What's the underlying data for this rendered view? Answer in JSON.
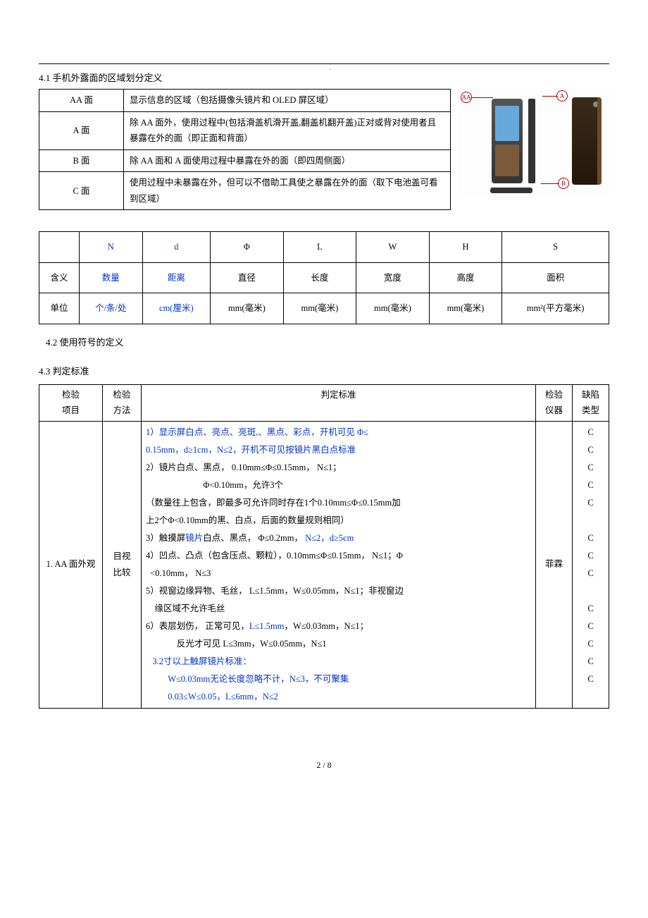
{
  "colors": {
    "text": "#000000",
    "link": "#0033cc",
    "border": "#000000",
    "badge": "#a00000"
  },
  "section_41": "4.1  手机外露面的区域划分定义",
  "surfaces_table": {
    "rows": [
      {
        "label": "AA 面",
        "desc": "显示信息的区域（包括摄像头镜片和 OLED 屏区域）"
      },
      {
        "label": "A 面",
        "desc": "除 AA 面外，使用过程中(包括滑盖机滑开盖,翻盖机翻开盖)正对或背对使用者且暴露在外的面（即正面和背面）"
      },
      {
        "label": "B 面",
        "desc": "除 AA 面和 A 面使用过程中暴露在外的面（即四周侧面）"
      },
      {
        "label": "C 面",
        "desc": "使用过程中未暴露在外，但可以不借助工具使之暴露在外的面（取下电池盖可看到区域）"
      }
    ]
  },
  "phone_diagram": {
    "badges": [
      "AA",
      "A",
      "B"
    ]
  },
  "symbols_table": {
    "headers": [
      "",
      "N",
      "d",
      "Φ",
      "L",
      "W",
      "H",
      "S"
    ],
    "row_meaning_label": "含义",
    "row_meaning": [
      "数量",
      "距离",
      "直径",
      "长度",
      "宽度",
      "高度",
      "面积"
    ],
    "row_unit_label": "单位",
    "row_unit": [
      "个/条/处",
      "cm(厘米)",
      "mm(毫米)",
      "mm(毫米)",
      "mm(毫米)",
      "mm(毫米)",
      "mm²(平方毫米)"
    ],
    "blue_cols": [
      1,
      2
    ]
  },
  "section_42": "4.2 使用符号的定义",
  "section_43": "4.3  判定标准",
  "criteria_table": {
    "headers": [
      "检验\n项目",
      "检验\n方法",
      "判定标准",
      "检验\n仪器",
      "缺陷\n类型"
    ],
    "col_widths": [
      "90px",
      "55px",
      "auto",
      "52px",
      "52px"
    ],
    "item": "1. AA 面外观",
    "method": "目视\n比较",
    "instrument": "菲霖",
    "lines": [
      {
        "segs": [
          {
            "t": "1）显示屏白点、亮点、亮斑,、黑点、彩点，开机可见      ",
            "c": "blue"
          },
          {
            "t": "Φ≤",
            "c": "blue"
          }
        ]
      },
      {
        "segs": [
          {
            "t": "0.15mm，d≥1cm，N≤2，开机不可见按镜片黑白点标准",
            "c": "blue"
          }
        ]
      },
      {
        "segs": [
          {
            "t": "2）镜片白点、黑点，  0.10mm≤Φ≤0.15mm，  N≤1；",
            "c": ""
          }
        ]
      },
      {
        "segs": [
          {
            "t": "                          Φ<0.10mm，允许3个",
            "c": ""
          }
        ]
      },
      {
        "segs": [
          {
            "t": "（数量往上包含，即最多可允许同时存在1个0.10mm≤Φ≤0.15mm加",
            "c": ""
          }
        ]
      },
      {
        "segs": [
          {
            "t": "上2个Φ<0.10mm的黑、白点，后面的数量规则相同）",
            "c": ""
          }
        ]
      },
      {
        "segs": [
          {
            "t": "3）触摸屏",
            "c": ""
          },
          {
            "t": "镜片",
            "c": "blue"
          },
          {
            "t": "白点、黑点，    Φ≤0.2mm，",
            "c": ""
          },
          {
            "t": " N≤2，d≥5cm",
            "c": "blue"
          }
        ]
      },
      {
        "segs": [
          {
            "t": "4）凹点、凸点（包含压点、颗粒），0.10mm≤Φ≤0.15mm，  N≤1；Φ",
            "c": ""
          }
        ]
      },
      {
        "segs": [
          {
            "t": "  <0.10mm，  N≤3",
            "c": ""
          }
        ]
      },
      {
        "segs": [
          {
            "t": "5）视窗边缘异物、毛丝，  L≤1.5mm，W≤0.05mm，N≤1；非视窗边",
            "c": ""
          }
        ]
      },
      {
        "segs": [
          {
            "t": "    缘区域不允许毛丝",
            "c": ""
          }
        ]
      },
      {
        "segs": [
          {
            "t": "6）表层划伤，  正常可见，",
            "c": ""
          },
          {
            "t": "L≤1.5mm",
            "c": "blue"
          },
          {
            "t": "，W≤0.03mm，N≤1；",
            "c": ""
          }
        ]
      },
      {
        "segs": [
          {
            "t": "              反光才可见  L≤3mm，W≤0.05mm，N≤1",
            "c": ""
          }
        ]
      },
      {
        "segs": [
          {
            "t": "   3.2寸以上触屏镜片标准：",
            "c": "blue"
          }
        ]
      },
      {
        "segs": [
          {
            "t": "          W≤0.03mm无论长度忽略不计，N≤3，不可聚集",
            "c": "blue"
          }
        ]
      },
      {
        "segs": [
          {
            "t": "          0.03≤W≤0.05，L≤6mm，N≤2",
            "c": "blue"
          }
        ]
      }
    ],
    "defects": [
      "C",
      "C",
      "C",
      "C",
      "C",
      "",
      "C",
      "C",
      "C",
      "",
      "C",
      "C",
      "C",
      "C",
      "C"
    ]
  },
  "footer": "2 / 8"
}
